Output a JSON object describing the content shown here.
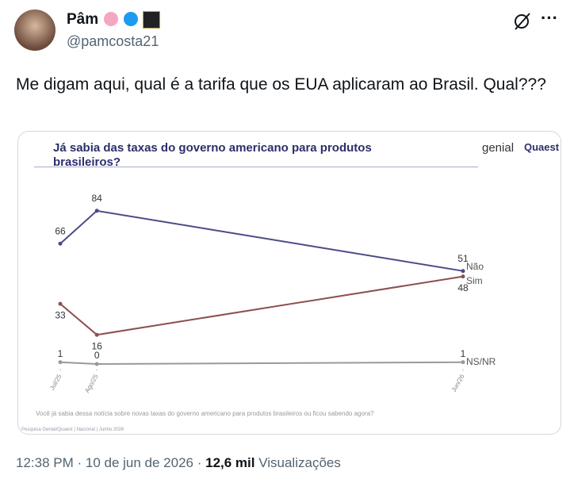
{
  "tweet": {
    "author": {
      "name": "Pâm",
      "handle": "@pamcosta21"
    },
    "text": "Me digam aqui, qual é a tarifa que os EUA aplicaram ao Brasil. Qual???",
    "time": "12:38 PM",
    "date": "10 de jun de 2026",
    "views": "12,6 mil",
    "views_label": "Visualizações"
  },
  "card": {
    "logo": "genial",
    "logo2": "Quaest",
    "question": "Você já sabia dessa notícia sobre novas taxas do governo americano para produtos brasileiros ou ficou sabendo agora?",
    "source": "Pesquisa Genial/Quaest | Nacional | Junho 2026"
  },
  "chart_data": {
    "type": "line",
    "title": "Já sabia das taxas do governo americano para produtos brasileiros?",
    "x": [
      "2025-07",
      "2025-08",
      "2026-06"
    ],
    "xlim": [
      "2025-07",
      "2026-06"
    ],
    "xticks": [
      {
        "value": "2025-07",
        "label": "Jul/25"
      },
      {
        "value": "2025-08",
        "label": "Ago/25"
      },
      {
        "value": "2026-06",
        "label": "Jun/26"
      }
    ],
    "ylim": [
      0,
      100
    ],
    "series": [
      {
        "name": "Não",
        "color": "#4b4b87",
        "values": [
          66,
          84,
          51
        ]
      },
      {
        "name": "Sim",
        "color": "#8c4f4f",
        "values": [
          33,
          16,
          48
        ]
      },
      {
        "name": "NS/NR",
        "color": "#9a9a9a",
        "values": [
          1,
          0,
          1
        ]
      }
    ]
  }
}
